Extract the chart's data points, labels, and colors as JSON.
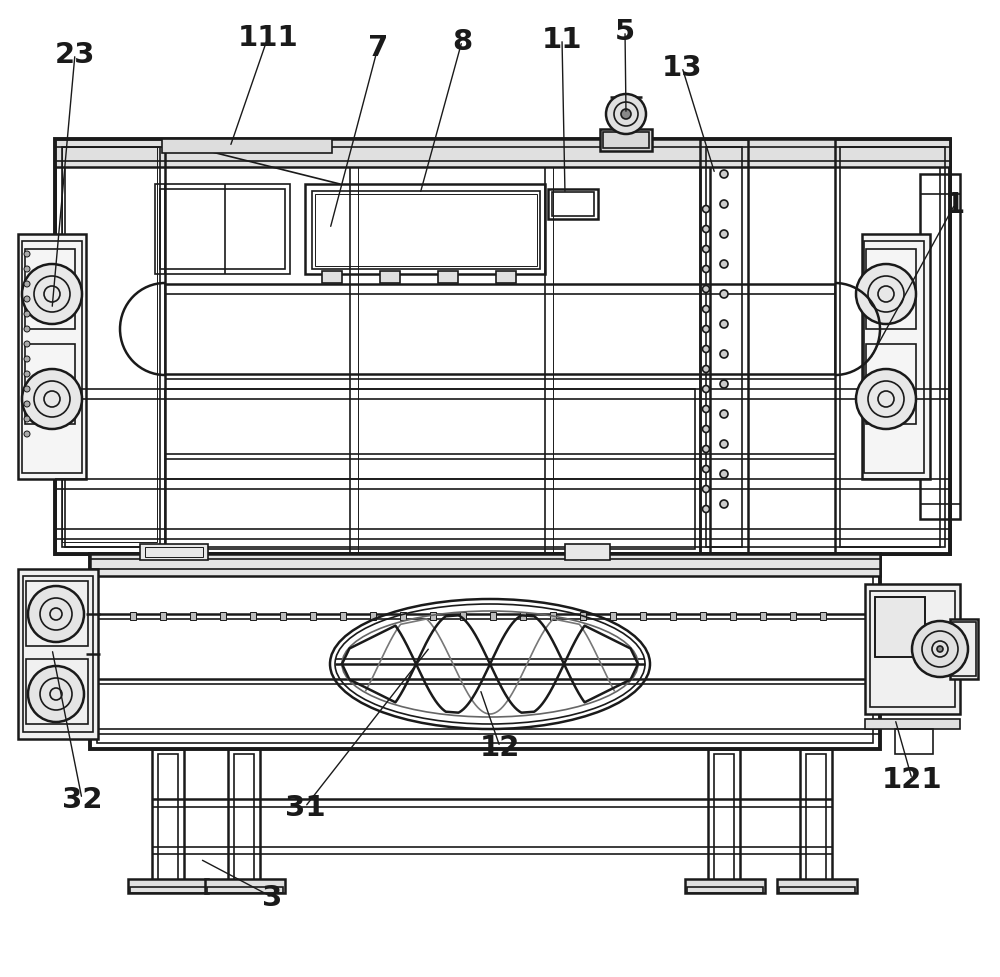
{
  "bg_color": "#ffffff",
  "lc": "#1a1a1a",
  "lc2": "#333333",
  "figsize": [
    10.0,
    9.78
  ],
  "dpi": 100,
  "label_fontsize": 21,
  "label_color": "#1a1a1a"
}
